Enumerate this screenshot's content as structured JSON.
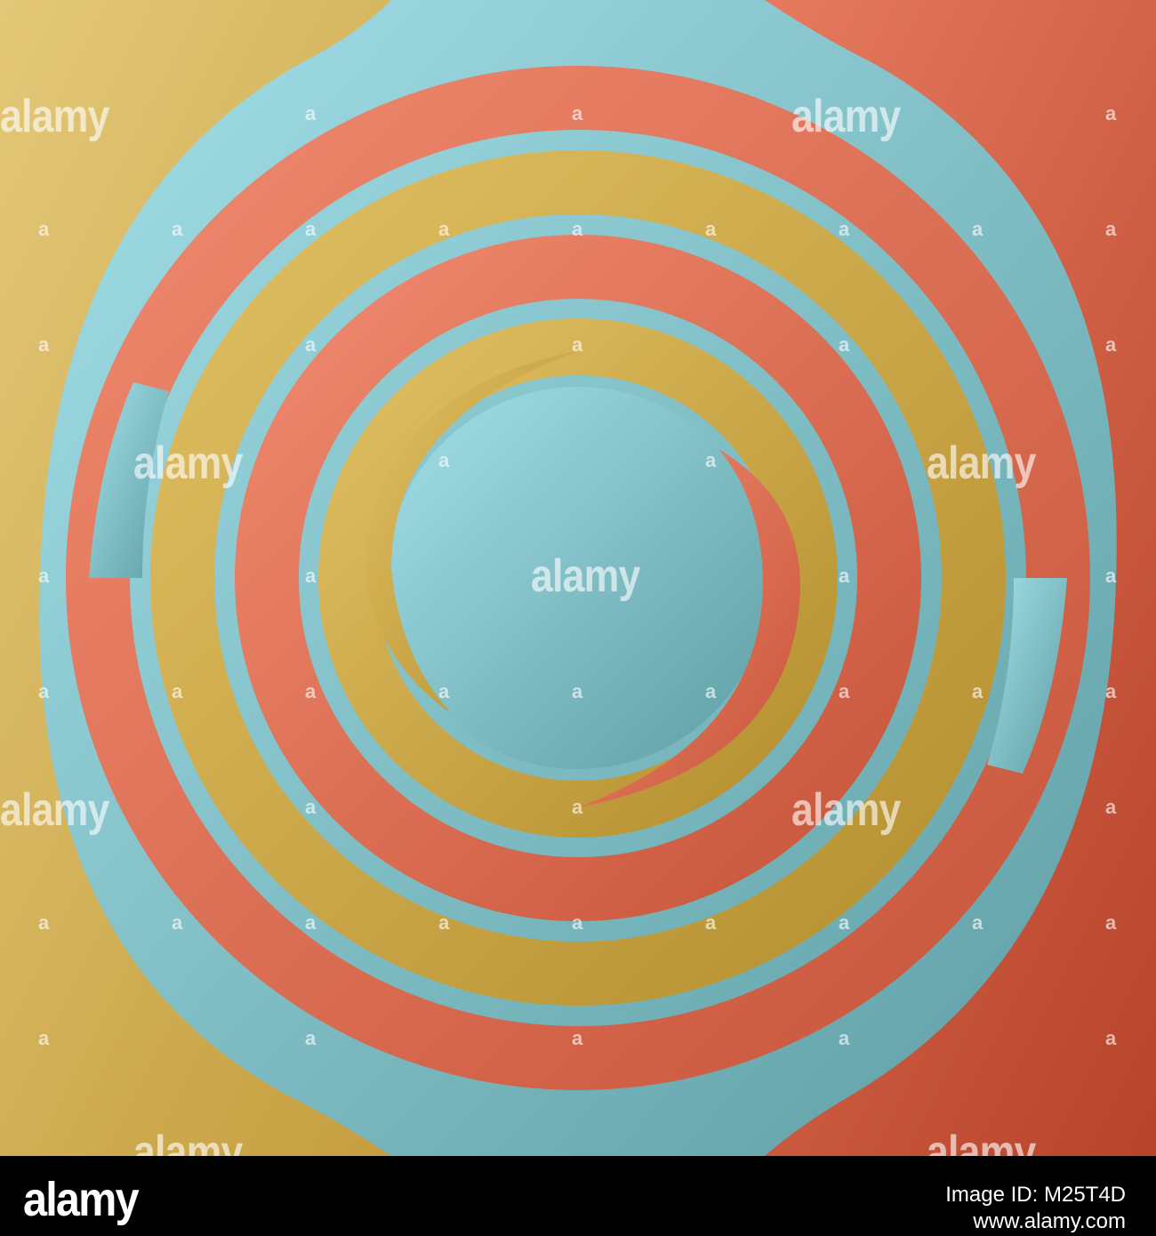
{
  "image": {
    "description_colors": {
      "gold": "#d9b552",
      "coral": "#e37759",
      "teal": "#7fc4cb",
      "rust": "#b9452c"
    }
  },
  "watermark": {
    "text": "alamy",
    "small": "a"
  },
  "footer": {
    "logo": "alamy",
    "image_id": "Image ID: M25T4D",
    "url": "www.alamy.com"
  }
}
